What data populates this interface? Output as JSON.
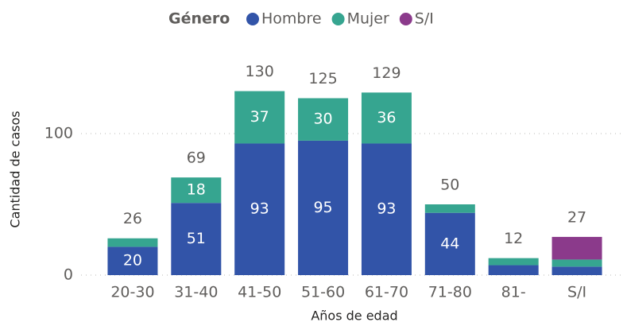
{
  "chart_data": {
    "type": "stacked_bar",
    "legend_title": "Género",
    "x_label": "Años de edad",
    "y_label": "Cantidad de casos",
    "categories": [
      "20-30",
      "31-40",
      "41-50",
      "51-60",
      "61-70",
      "71-80",
      "81-",
      "S/I"
    ],
    "series": [
      {
        "name": "Hombre",
        "color": "#3254a8",
        "values": [
          20,
          51,
          93,
          95,
          93,
          44,
          7,
          6
        ]
      },
      {
        "name": "Mujer",
        "color": "#36a590",
        "values": [
          6,
          18,
          37,
          30,
          36,
          6,
          5,
          5
        ]
      },
      {
        "name": "S/I",
        "color": "#8b3a8b",
        "values": [
          0,
          0,
          0,
          0,
          0,
          0,
          0,
          16
        ]
      }
    ],
    "totals": [
      26,
      69,
      130,
      125,
      129,
      50,
      12,
      27
    ],
    "ylim": [
      0,
      150
    ],
    "yticks": [
      0,
      100
    ],
    "grid": true
  }
}
